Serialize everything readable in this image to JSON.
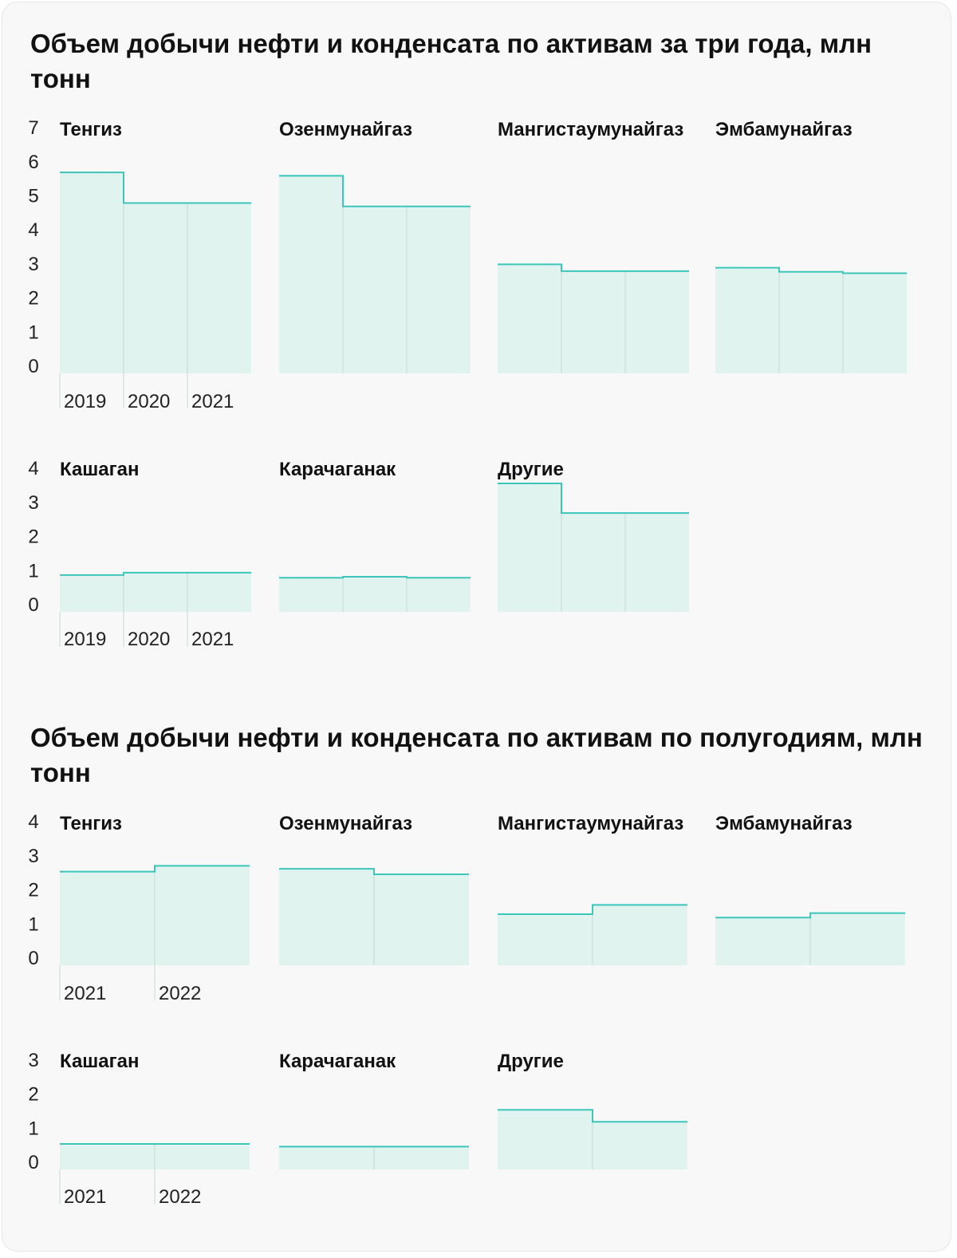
{
  "style": {
    "fill": "#e0f3ef",
    "stroke": "#3cc6bb",
    "divider": "#c4d8d4",
    "text": "#111111"
  },
  "chart_data": [
    {
      "type": "bar",
      "title": "Объем добычи нефти и конденсата по активам за три года, млн тонн",
      "categories": [
        "2019",
        "2020",
        "2021"
      ],
      "panel_rows": [
        {
          "ylim": [
            0,
            7
          ],
          "yticks": [
            "0",
            "1",
            "2",
            "3",
            "4",
            "5",
            "6",
            "7"
          ],
          "panels": [
            {
              "name": "Тенгиз",
              "values": [
                5.9,
                5.0,
                5.0
              ]
            },
            {
              "name": "Озенмунайгаз",
              "values": [
                5.8,
                4.9,
                4.9
              ]
            },
            {
              "name": "Мангистаумунайгаз",
              "values": [
                3.2,
                3.0,
                3.0
              ]
            },
            {
              "name": "Эмбамунайгаз",
              "values": [
                3.1,
                2.98,
                2.94
              ]
            }
          ]
        },
        {
          "ylim": [
            0,
            4
          ],
          "yticks": [
            "0",
            "1",
            "2",
            "3",
            "4"
          ],
          "panels": [
            {
              "name": "Кашаган",
              "values": [
                1.08,
                1.15,
                1.15
              ]
            },
            {
              "name": "Карачаганак",
              "values": [
                1.0,
                1.03,
                1.0
              ]
            },
            {
              "name": "Другие",
              "values": [
                3.77,
                2.9,
                2.9
              ]
            }
          ]
        }
      ]
    },
    {
      "type": "bar",
      "title": "Объем добычи нефти и конденсата по активам по полугодиям, млн тонн",
      "categories": [
        "2021",
        "2022"
      ],
      "panel_rows": [
        {
          "ylim": [
            0,
            4
          ],
          "yticks": [
            "0",
            "1",
            "2",
            "3",
            "4"
          ],
          "panels": [
            {
              "name": "Тенгиз",
              "values": [
                2.75,
                2.92
              ]
            },
            {
              "name": "Озенмунайгаз",
              "values": [
                2.83,
                2.67
              ]
            },
            {
              "name": "Мангистаумунайгаз",
              "values": [
                1.5,
                1.77
              ]
            },
            {
              "name": "Эмбамунайгаз",
              "values": [
                1.4,
                1.53
              ]
            }
          ]
        },
        {
          "ylim": [
            0,
            3
          ],
          "yticks": [
            "0",
            "1",
            "2",
            "3"
          ],
          "panels": [
            {
              "name": "Кашаган",
              "values": [
                0.75,
                0.75
              ]
            },
            {
              "name": "Карачаганак",
              "values": [
                0.67,
                0.67
              ]
            },
            {
              "name": "Другие",
              "values": [
                1.75,
                1.4
              ]
            }
          ]
        }
      ]
    }
  ]
}
